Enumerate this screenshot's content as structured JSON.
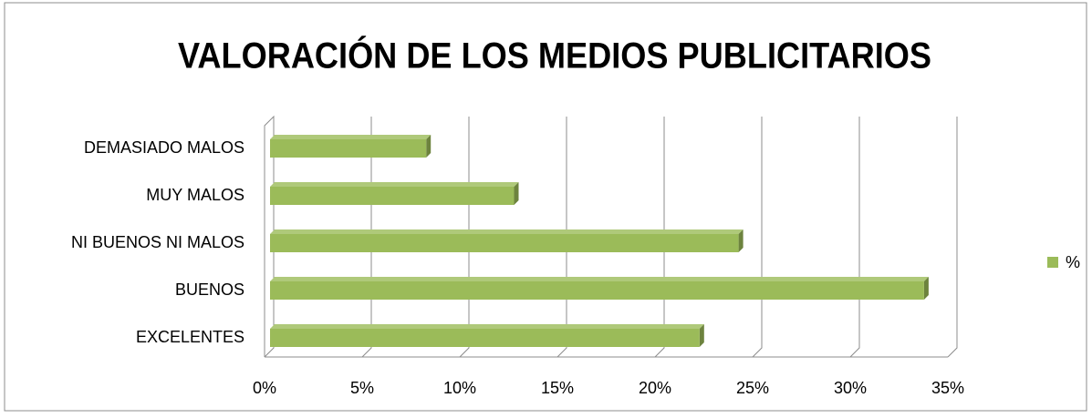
{
  "chart_data": {
    "type": "bar3d_horizontal",
    "title": "VALORACIÓN DE LOS MEDIOS PUBLICITARIOS",
    "categories": [
      "DEMASIADO MALOS",
      "MUY MALOS",
      "NI BUENOS NI MALOS",
      "BUENOS",
      "EXCELENTES"
    ],
    "series": [
      {
        "name": "%",
        "color": "#9bbb59",
        "values": [
          8,
          12.5,
          24,
          33.5,
          22
        ]
      }
    ],
    "xlim": [
      0,
      35
    ],
    "xticks": [
      {
        "value": 0,
        "label": "0%"
      },
      {
        "value": 5,
        "label": "5%"
      },
      {
        "value": 10,
        "label": "10%"
      },
      {
        "value": 15,
        "label": "15%"
      },
      {
        "value": 20,
        "label": "20%"
      },
      {
        "value": 25,
        "label": "25%"
      },
      {
        "value": 30,
        "label": "30%"
      },
      {
        "value": 35,
        "label": "35%"
      }
    ],
    "grid": true,
    "legend": "right"
  }
}
